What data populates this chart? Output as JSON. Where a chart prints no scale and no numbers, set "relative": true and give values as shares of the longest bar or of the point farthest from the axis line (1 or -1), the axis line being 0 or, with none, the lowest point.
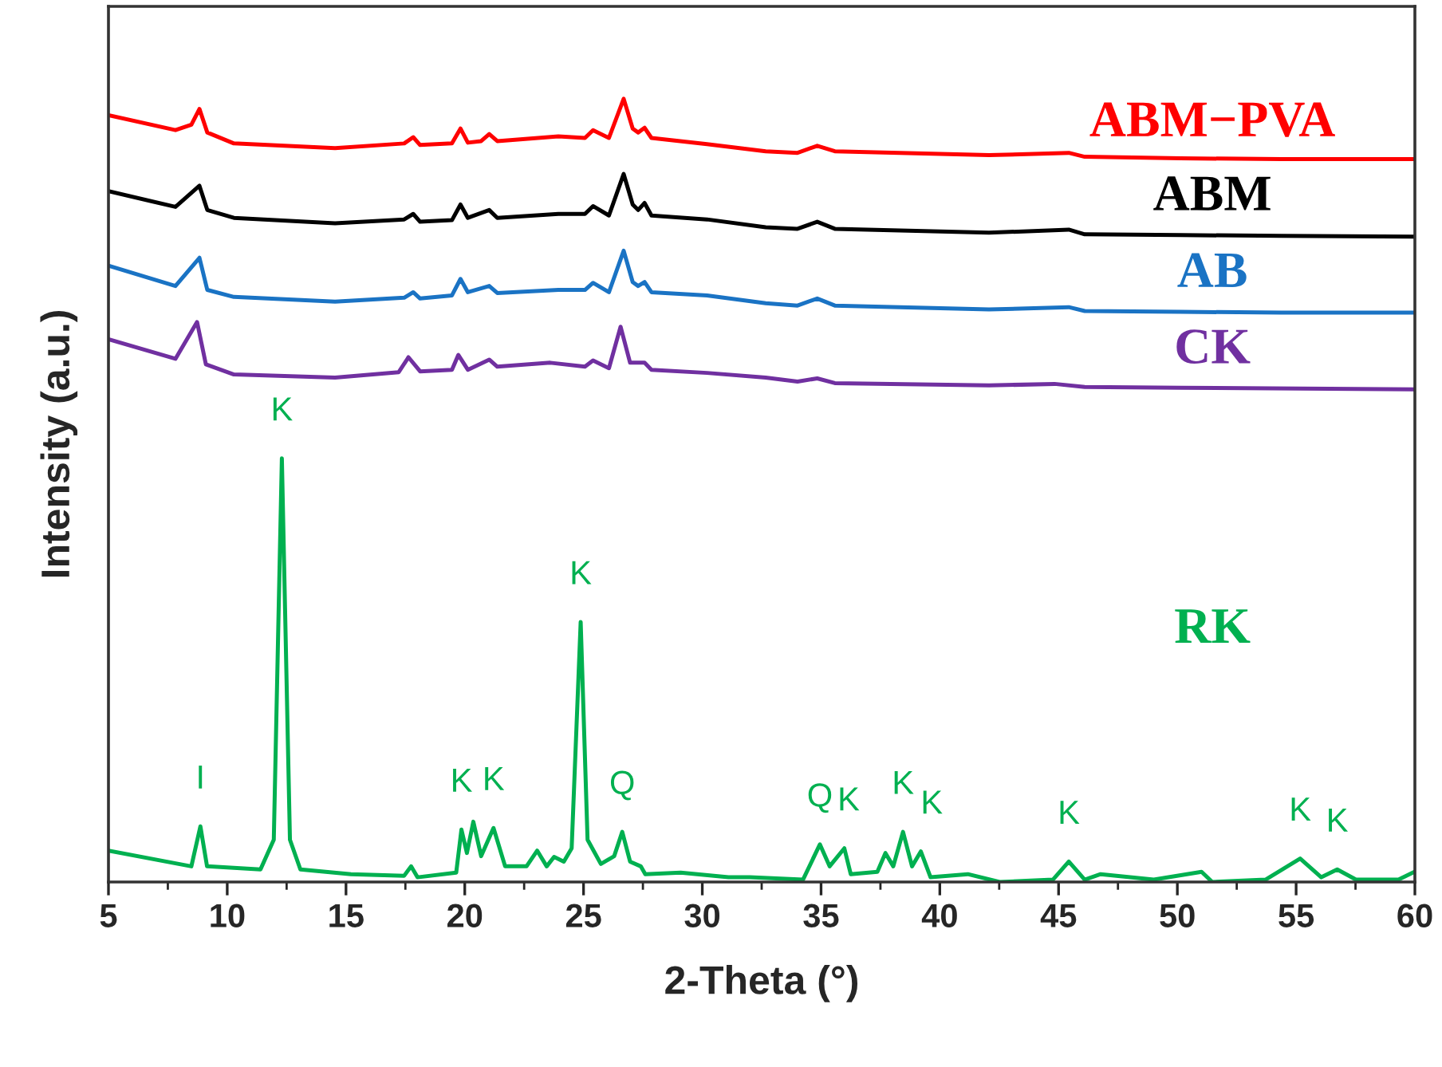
{
  "chart_data": {
    "type": "line",
    "relative": true,
    "xlabel": "2-Theta (°)",
    "ylabel": "Intensity (a.u.)",
    "xlim": [
      5,
      60
    ],
    "xticks": [
      5,
      10,
      15,
      20,
      25,
      30,
      35,
      40,
      45,
      50,
      55,
      60
    ],
    "tick_labels": "x",
    "grid": false,
    "legend": false,
    "marker": "none",
    "line_style": "solid",
    "series": [
      {
        "name": "ABM−PVA",
        "color": "#ff0000",
        "x": [
          5.0,
          7.82,
          8.49,
          8.83,
          9.16,
          10.28,
          14.54,
          17.45,
          17.83,
          18.12,
          19.46,
          19.82,
          20.13,
          20.69,
          21.03,
          21.37,
          23.94,
          25.06,
          25.4,
          26.07,
          26.69,
          27.07,
          27.3,
          27.57,
          27.86,
          30.2,
          32.67,
          34.01,
          34.84,
          35.58,
          42.07,
          45.43,
          46.1,
          50.13,
          54.38,
          59.98
        ],
        "values": [
          0.979,
          0.96,
          0.967,
          0.987,
          0.957,
          0.943,
          0.937,
          0.943,
          0.951,
          0.941,
          0.943,
          0.962,
          0.944,
          0.946,
          0.955,
          0.946,
          0.952,
          0.95,
          0.96,
          0.95,
          1.0,
          0.962,
          0.957,
          0.963,
          0.95,
          0.942,
          0.933,
          0.931,
          0.94,
          0.933,
          0.928,
          0.931,
          0.926,
          0.924,
          0.923,
          0.923
        ]
      },
      {
        "name": "ABM",
        "color": "#000000",
        "x": [
          5.0,
          7.82,
          8.83,
          9.16,
          10.28,
          14.54,
          17.45,
          17.83,
          18.12,
          19.46,
          19.82,
          20.13,
          21.03,
          21.37,
          23.94,
          25.06,
          25.4,
          26.07,
          26.69,
          27.07,
          27.3,
          27.57,
          27.86,
          30.2,
          32.67,
          34.01,
          34.84,
          35.58,
          42.07,
          45.43,
          46.1,
          50.13,
          54.38,
          59.98
        ],
        "values": [
          0.882,
          0.862,
          0.889,
          0.858,
          0.848,
          0.841,
          0.846,
          0.853,
          0.843,
          0.845,
          0.865,
          0.848,
          0.858,
          0.848,
          0.853,
          0.853,
          0.863,
          0.851,
          0.904,
          0.865,
          0.858,
          0.867,
          0.851,
          0.846,
          0.836,
          0.834,
          0.843,
          0.834,
          0.829,
          0.833,
          0.827,
          0.826,
          0.825,
          0.824
        ]
      },
      {
        "name": "AB",
        "color": "#1a73c4",
        "x": [
          5.0,
          7.82,
          8.83,
          9.16,
          10.28,
          14.54,
          17.45,
          17.83,
          18.12,
          19.46,
          19.82,
          20.13,
          21.03,
          21.37,
          23.94,
          25.06,
          25.4,
          26.07,
          26.69,
          27.07,
          27.3,
          27.57,
          27.86,
          30.2,
          32.67,
          34.01,
          34.84,
          35.58,
          42.07,
          45.43,
          46.1,
          50.13,
          54.38,
          59.98
        ],
        "values": [
          0.787,
          0.761,
          0.797,
          0.756,
          0.747,
          0.741,
          0.746,
          0.753,
          0.745,
          0.749,
          0.77,
          0.753,
          0.761,
          0.752,
          0.756,
          0.756,
          0.765,
          0.753,
          0.806,
          0.766,
          0.761,
          0.766,
          0.753,
          0.749,
          0.739,
          0.736,
          0.745,
          0.736,
          0.731,
          0.734,
          0.729,
          0.728,
          0.727,
          0.727
        ]
      },
      {
        "name": "CK",
        "color": "#7030a0",
        "x": [
          5.0,
          7.82,
          8.73,
          9.1,
          10.28,
          14.54,
          17.22,
          17.63,
          18.12,
          19.46,
          19.73,
          20.13,
          21.03,
          21.37,
          23.6,
          25.06,
          25.4,
          26.07,
          26.56,
          26.96,
          27.57,
          27.86,
          30.2,
          32.67,
          34.01,
          34.84,
          35.58,
          42.07,
          44.83,
          46.1,
          50.13,
          59.98
        ],
        "values": [
          0.693,
          0.668,
          0.715,
          0.661,
          0.648,
          0.644,
          0.651,
          0.67,
          0.652,
          0.654,
          0.673,
          0.654,
          0.667,
          0.658,
          0.663,
          0.658,
          0.666,
          0.656,
          0.709,
          0.663,
          0.663,
          0.654,
          0.65,
          0.644,
          0.639,
          0.643,
          0.637,
          0.634,
          0.636,
          0.632,
          0.631,
          0.629
        ]
      },
      {
        "name": "RK",
        "color": "#00b050",
        "x": [
          5.0,
          8.49,
          8.87,
          9.15,
          11.4,
          11.96,
          12.3,
          12.64,
          13.08,
          15.21,
          17.45,
          17.74,
          18.01,
          19.64,
          19.86,
          20.09,
          20.36,
          20.69,
          21.21,
          21.7,
          22.6,
          23.05,
          23.45,
          23.76,
          24.17,
          24.5,
          24.88,
          25.17,
          25.73,
          26.29,
          26.63,
          26.96,
          27.41,
          27.6,
          29.09,
          31.1,
          32.0,
          34.24,
          34.95,
          35.36,
          35.98,
          36.25,
          37.37,
          37.71,
          38.04,
          38.45,
          38.83,
          39.2,
          39.61,
          41.18,
          42.52,
          44.76,
          45.43,
          46.1,
          46.77,
          49.01,
          51.02,
          51.47,
          53.71,
          55.17,
          56.06,
          56.73,
          57.52,
          59.31,
          59.98
        ],
        "values": [
          0.04,
          0.02,
          0.071,
          0.02,
          0.016,
          0.054,
          0.541,
          0.054,
          0.016,
          0.01,
          0.008,
          0.02,
          0.006,
          0.012,
          0.067,
          0.037,
          0.077,
          0.033,
          0.069,
          0.02,
          0.02,
          0.04,
          0.02,
          0.032,
          0.026,
          0.043,
          0.332,
          0.054,
          0.023,
          0.033,
          0.064,
          0.026,
          0.02,
          0.01,
          0.012,
          0.006,
          0.006,
          0.003,
          0.048,
          0.02,
          0.043,
          0.01,
          0.013,
          0.037,
          0.02,
          0.064,
          0.02,
          0.039,
          0.006,
          0.01,
          0.0,
          0.003,
          0.026,
          0.003,
          0.01,
          0.003,
          0.013,
          0.0,
          0.003,
          0.03,
          0.006,
          0.016,
          0.003,
          0.003,
          0.013
        ]
      }
    ],
    "annotations": [
      {
        "text": "I",
        "x": 8.87,
        "y": 0.071
      },
      {
        "text": "K",
        "x": 12.3,
        "y": 0.541
      },
      {
        "text": "K",
        "x": 19.86,
        "y": 0.067
      },
      {
        "text": "K",
        "x": 21.21,
        "y": 0.069
      },
      {
        "text": "K",
        "x": 24.88,
        "y": 0.332
      },
      {
        "text": "Q",
        "x": 26.63,
        "y": 0.064
      },
      {
        "text": "Q",
        "x": 34.95,
        "y": 0.048
      },
      {
        "text": "K",
        "x": 35.98,
        "y": 0.043
      },
      {
        "text": "K",
        "x": 38.45,
        "y": 0.064
      },
      {
        "text": "K",
        "x": 39.2,
        "y": 0.039
      },
      {
        "text": "K",
        "x": 45.43,
        "y": 0.026
      },
      {
        "text": "K",
        "x": 55.17,
        "y": 0.03
      },
      {
        "text": "K",
        "x": 56.73,
        "y": 0.016
      }
    ]
  }
}
